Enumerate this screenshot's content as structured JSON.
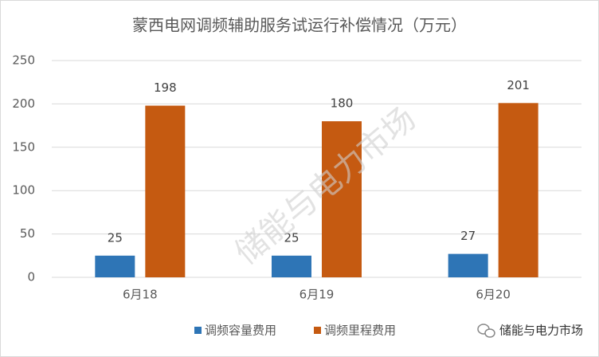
{
  "chart_data": {
    "type": "bar",
    "title": "蒙西电网调频辅助服务试运行补偿情况（万元）",
    "categories": [
      "6月18",
      "6月19",
      "6月20"
    ],
    "series": [
      {
        "name": "调频容量费用",
        "color": "#2e75b6",
        "values": [
          25,
          25,
          27
        ]
      },
      {
        "name": "调频里程费用",
        "color": "#c55a11",
        "values": [
          198,
          180,
          201
        ]
      }
    ],
    "ylim": [
      0,
      250
    ],
    "yticks": [
      0,
      50,
      100,
      150,
      200,
      250
    ],
    "grid": true,
    "legend": "bottom",
    "watermark": "储能与电力市场",
    "source_mark": "储能与电力市场"
  }
}
